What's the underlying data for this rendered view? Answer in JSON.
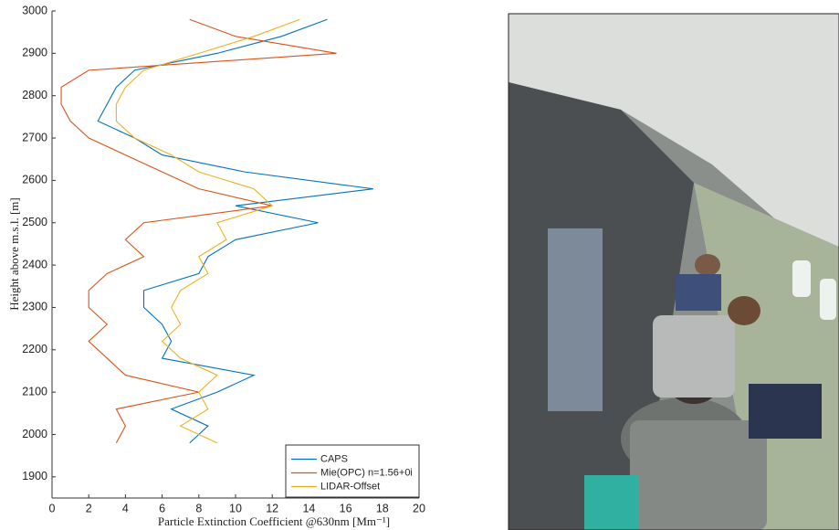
{
  "chart_data": {
    "type": "line",
    "x_label": "Particle Extinction Coefficient @630nm [Mm⁻¹]",
    "y_label": "Height above m.s.l. [m]",
    "xlim": [
      0,
      20
    ],
    "xticks": [
      0,
      2,
      4,
      6,
      8,
      10,
      12,
      14,
      16,
      18,
      20
    ],
    "ylim": [
      1850,
      3000
    ],
    "yticks": [
      1900,
      2000,
      2100,
      2200,
      2300,
      2400,
      2500,
      2600,
      2700,
      2800,
      2900,
      3000
    ],
    "legend": "lower right",
    "y": [
      1980,
      2020,
      2060,
      2100,
      2140,
      2180,
      2220,
      2260,
      2300,
      2340,
      2380,
      2420,
      2460,
      2500,
      2540,
      2580,
      2620,
      2660,
      2700,
      2740,
      2780,
      2820,
      2860,
      2900,
      2940,
      2980
    ],
    "series": [
      {
        "name": "CAPS",
        "color": "#0072bd",
        "values": [
          7.5,
          8.5,
          6.5,
          9,
          11,
          6,
          6.5,
          6,
          5,
          5,
          8,
          8.5,
          10,
          14.5,
          10,
          17.5,
          10.5,
          6,
          4.5,
          2.5,
          3,
          3.5,
          4.5,
          9,
          12.5,
          15
        ]
      },
      {
        "name": "Mie(OPC) n=1.56+0i",
        "color": "#d95319",
        "values": [
          3.5,
          4,
          3.5,
          8,
          4,
          3,
          2,
          3,
          2,
          2,
          3,
          5,
          4,
          5,
          12,
          8,
          6,
          4,
          2,
          1,
          0.5,
          0.5,
          2,
          15.5,
          10,
          7.5
        ]
      },
      {
        "name": "LIDAR-Offset",
        "color": "#edb120",
        "values": [
          9,
          7,
          8.5,
          8,
          9,
          7,
          6,
          7,
          6.5,
          7,
          8.5,
          8,
          9.5,
          9,
          12,
          11,
          8,
          6.5,
          4.5,
          3.5,
          3.5,
          4,
          5,
          8,
          11,
          13.5
        ]
      }
    ]
  }
}
